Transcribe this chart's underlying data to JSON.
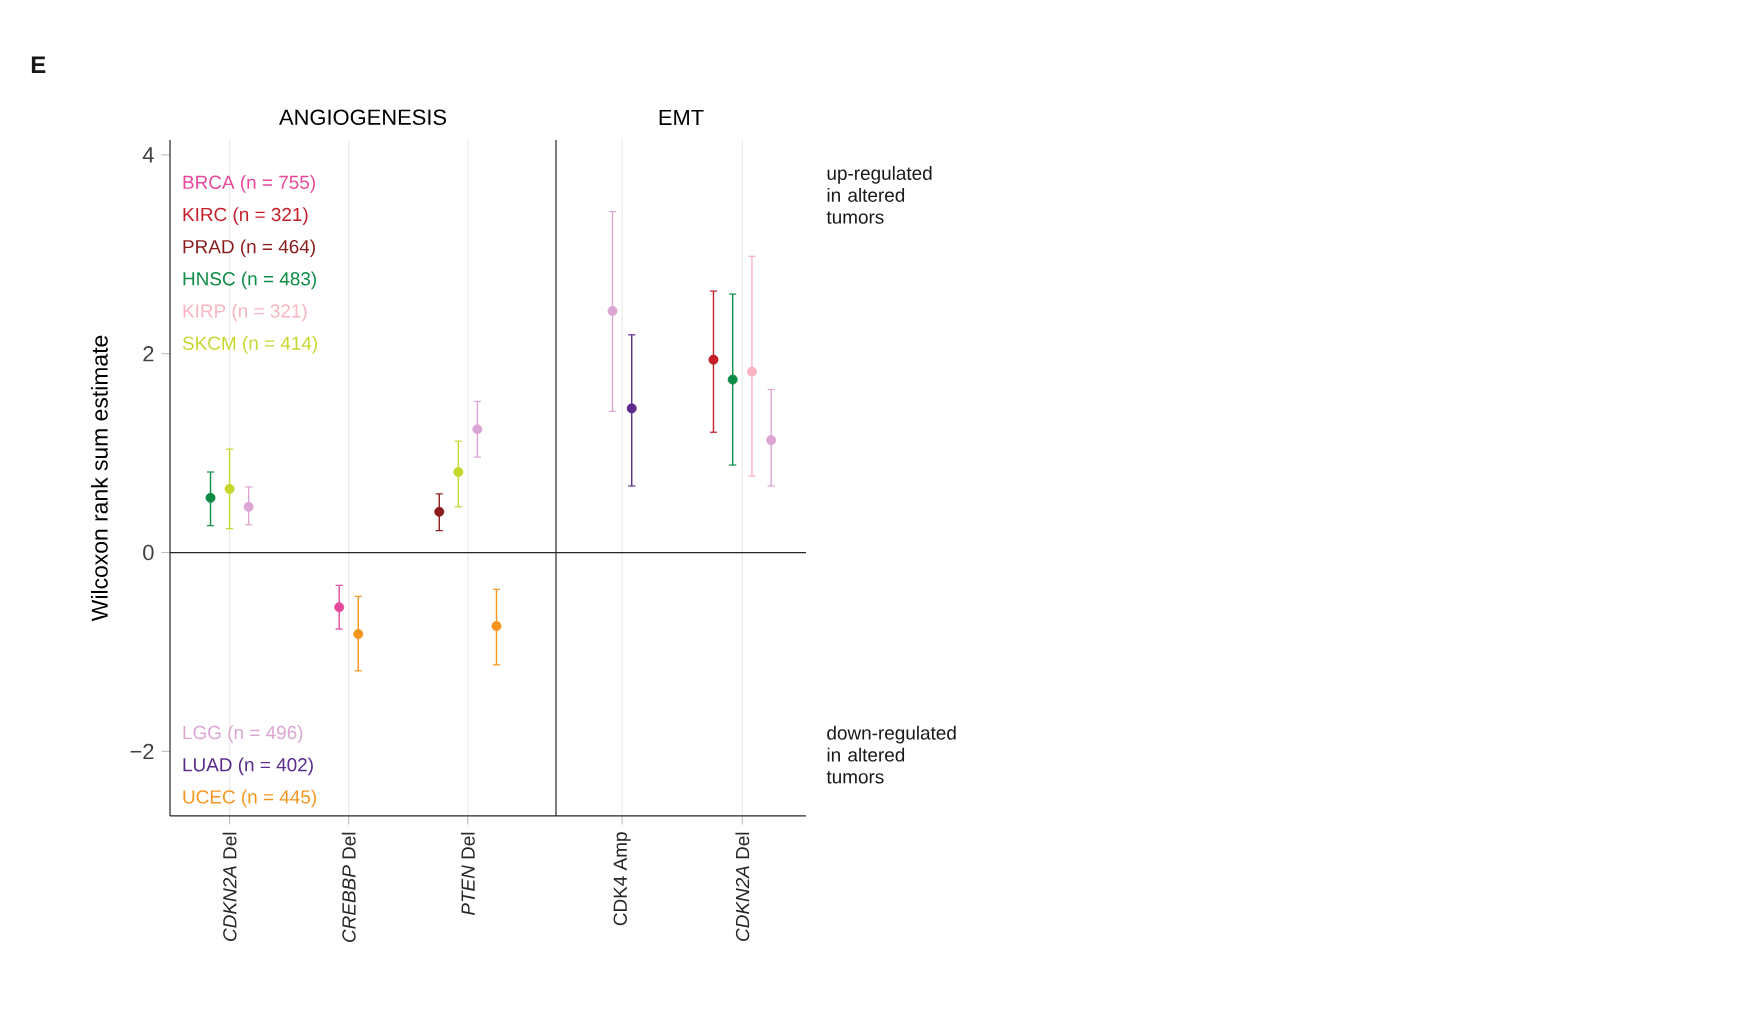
{
  "chart_data": [
    {
      "type": "scatter",
      "title": "ANGIOGENESIS",
      "ylabel": "Wilcoxon rank sum estimate",
      "categories": [
        "*CDKN2A* Del",
        "*CREBBP* Del",
        "*PTEN* Del"
      ],
      "ylim": [
        -2.65,
        4.15
      ],
      "yticks": [
        {
          "value": -2,
          "label": "−2"
        },
        0,
        2,
        4
      ],
      "grid": "x",
      "marker": "circle",
      "legend": "left",
      "ref_lines": [
        {
          "axis": "y",
          "value": 0
        }
      ],
      "annotations": [
        "E"
      ],
      "series": [
        {
          "name": "BRCA (n = 755)",
          "color": "#e8489a",
          "values": [
            null,
            -0.55,
            null
          ],
          "errors": [
            null,
            [
              -0.77,
              -0.33
            ],
            null
          ]
        },
        {
          "name": "KIRC (n = 321)",
          "color": "#c41e2a",
          "values": [
            null,
            null,
            null
          ],
          "errors": [
            null,
            null,
            null
          ]
        },
        {
          "name": "PRAD (n = 464)",
          "color": "#8b1c1c",
          "values": [
            null,
            null,
            0.41
          ],
          "errors": [
            null,
            null,
            [
              0.22,
              0.59
            ]
          ]
        },
        {
          "name": "HNSC (n = 483)",
          "color": "#0e8c45",
          "values": [
            0.55,
            null,
            null
          ],
          "errors": [
            [
              0.27,
              0.81
            ],
            null,
            null
          ]
        },
        {
          "name": "KIRP (n = 321)",
          "color": "#f8b4c0",
          "values": [
            null,
            null,
            null
          ],
          "errors": [
            null,
            null,
            null
          ]
        },
        {
          "name": "SKCM (n = 414)",
          "color": "#c5d62c",
          "values": [
            0.64,
            null,
            0.81
          ],
          "errors": [
            [
              0.24,
              1.04
            ],
            null,
            [
              0.46,
              1.12
            ]
          ]
        },
        {
          "name": "LGG (n = 496)",
          "color": "#dba6d3",
          "values": [
            0.46,
            null,
            1.24
          ],
          "errors": [
            [
              0.28,
              0.66
            ],
            null,
            [
              0.96,
              1.52
            ]
          ]
        },
        {
          "name": "LUAD (n = 402)",
          "color": "#5b2c8c",
          "values": [
            null,
            null,
            null
          ],
          "errors": [
            null,
            null,
            null
          ]
        },
        {
          "name": "UCEC (n = 445)",
          "color": "#f7941d",
          "values": [
            null,
            -0.82,
            -0.74
          ],
          "errors": [
            null,
            [
              -1.19,
              -0.44
            ],
            [
              -1.13,
              -0.37
            ]
          ]
        }
      ]
    },
    {
      "type": "scatter",
      "title": "EMT",
      "categories": [
        "CDK4 Amp",
        "*CDKN2A* Del"
      ],
      "ylim": [
        -2.65,
        4.15
      ],
      "tick_labels": "x",
      "grid": "x",
      "marker": "circle",
      "ref_lines": [
        {
          "axis": "y",
          "value": 0
        }
      ],
      "annotations": [
        "up-regulated in altered tumors",
        "down-regulated in altered tumors"
      ],
      "series": [
        {
          "color": "#c41e2a",
          "values": [
            null,
            1.94
          ],
          "errors": [
            null,
            [
              1.21,
              2.63
            ]
          ]
        },
        {
          "color": "#0e8c45",
          "values": [
            null,
            1.74
          ],
          "errors": [
            null,
            [
              0.88,
              2.6
            ]
          ]
        },
        {
          "color": "#f8b4c0",
          "values": [
            null,
            1.82
          ],
          "errors": [
            null,
            [
              0.77,
              2.98
            ]
          ]
        },
        {
          "color": "#dba6d3",
          "values": [
            2.43,
            1.13
          ],
          "errors": [
            [
              1.42,
              3.43
            ],
            [
              0.67,
              1.64
            ]
          ]
        },
        {
          "color": "#5b2c8c",
          "values": [
            1.45,
            null
          ],
          "errors": [
            [
              0.67,
              2.19
            ],
            null
          ]
        }
      ]
    }
  ]
}
